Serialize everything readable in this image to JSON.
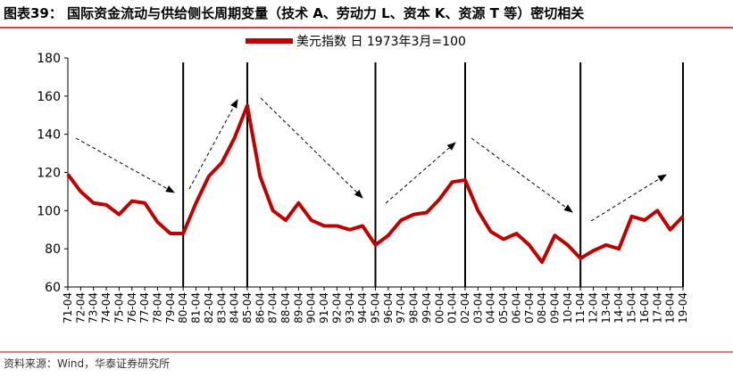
{
  "chart_data": {
    "type": "line",
    "title": "图表39： 国际资金流动与供给侧长周期变量（技术 A、劳动力 L、资本 K、资源 T 等）密切相关",
    "source": "资料来源：Wind，华泰证券研究所",
    "categories": [
      "71-04",
      "72-04",
      "73-04",
      "74-04",
      "75-04",
      "76-04",
      "77-04",
      "78-04",
      "79-04",
      "80-04",
      "81-04",
      "82-04",
      "83-04",
      "84-04",
      "85-04",
      "86-04",
      "87-04",
      "88-04",
      "89-04",
      "90-04",
      "91-04",
      "92-04",
      "93-04",
      "94-04",
      "95-04",
      "96-04",
      "97-04",
      "98-04",
      "99-04",
      "00-04",
      "01-04",
      "02-04",
      "03-04",
      "04-04",
      "05-04",
      "06-04",
      "07-04",
      "08-04",
      "09-04",
      "10-04",
      "11-04",
      "12-04",
      "13-04",
      "14-04",
      "15-04",
      "16-04",
      "17-04",
      "18-04",
      "19-04"
    ],
    "series": [
      {
        "name": "美元指数 日 1973年3月=100",
        "color": "#c00000",
        "values": [
          119,
          110,
          104,
          103,
          98,
          105,
          104,
          94,
          88,
          88,
          104,
          118,
          125,
          138,
          155,
          118,
          100,
          95,
          104,
          95,
          92,
          92,
          90,
          92,
          82,
          87,
          95,
          98,
          99,
          106,
          115,
          116,
          100,
          89,
          85,
          88,
          82,
          73,
          87,
          82,
          75,
          79,
          82,
          80,
          97,
          95,
          100,
          90,
          97
        ]
      }
    ],
    "ylim": [
      60,
      180
    ],
    "yticks": [
      60,
      80,
      100,
      120,
      140,
      160,
      180
    ],
    "vertical_lines": [
      "80-04",
      "85-04",
      "95-04",
      "02-04",
      "11-04",
      "19-04"
    ]
  }
}
